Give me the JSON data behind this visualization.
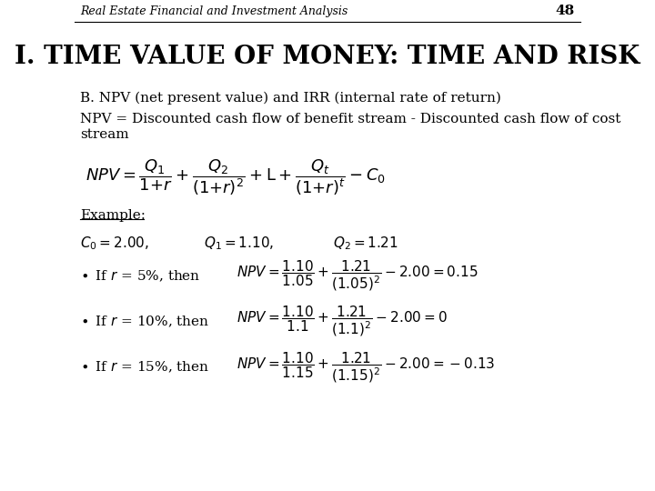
{
  "background_color": "#ffffff",
  "header_text": "Real Estate Financial and Investment Analysis",
  "page_number": "48",
  "title": "I. TIME VALUE OF MONEY: TIME AND RISK",
  "header_fontsize": 9,
  "title_fontsize": 20,
  "body_fontsize": 11,
  "math_fontsize": 11
}
